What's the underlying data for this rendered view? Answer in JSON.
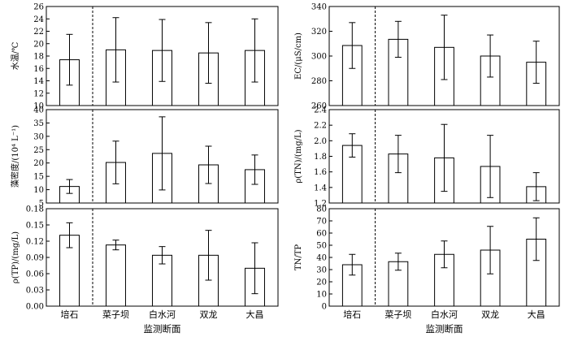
{
  "chart_data": [
    {
      "type": "bar",
      "ylabel": "水温/℃",
      "ylim": [
        10,
        26
      ],
      "ticks": [
        10,
        12,
        14,
        16,
        18,
        20,
        22,
        24,
        26
      ],
      "decimals": 0,
      "categories": [
        "培石",
        "菜子坝",
        "白水河",
        "双龙",
        "大昌"
      ],
      "values": [
        17.4,
        19.0,
        18.9,
        18.5,
        18.9
      ],
      "errors": [
        4.1,
        5.2,
        5.0,
        4.9,
        5.1
      ]
    },
    {
      "type": "bar",
      "ylabel": "藻密度/(10⁴ L⁻¹)",
      "ylim": [
        5,
        40
      ],
      "ticks": [
        5,
        10,
        15,
        20,
        25,
        30,
        35,
        40
      ],
      "decimals": 0,
      "categories": [
        "培石",
        "菜子坝",
        "白水河",
        "双龙",
        "大昌"
      ],
      "values": [
        11.2,
        20.2,
        23.6,
        19.3,
        17.5
      ],
      "errors": [
        2.6,
        8.0,
        13.7,
        7.0,
        5.5
      ]
    },
    {
      "type": "bar",
      "ylabel": "ρ(TP)/(mg/L)",
      "ylim": [
        0,
        0.18
      ],
      "ticks": [
        0,
        0.03,
        0.06,
        0.09,
        0.12,
        0.15,
        0.18
      ],
      "decimals": 2,
      "categories": [
        "培石",
        "菜子坝",
        "白水河",
        "双龙",
        "大昌"
      ],
      "values": [
        0.131,
        0.113,
        0.094,
        0.094,
        0.07
      ],
      "errors": [
        0.023,
        0.009,
        0.016,
        0.046,
        0.047
      ],
      "xlabel": "监测断面"
    },
    {
      "type": "bar",
      "ylabel": "EC/(μS/cm)",
      "ylim": [
        260,
        340
      ],
      "ticks": [
        260,
        280,
        300,
        320,
        340
      ],
      "decimals": 0,
      "categories": [
        "培石",
        "菜子坝",
        "白水河",
        "双龙",
        "大昌"
      ],
      "values": [
        308.5,
        313.5,
        307.0,
        300.0,
        295.0
      ],
      "errors": [
        18.5,
        14.5,
        26.0,
        17.0,
        17.0
      ]
    },
    {
      "type": "bar",
      "ylabel": "ρ(TN)/(mg/L)",
      "ylim": [
        1.2,
        2.4
      ],
      "ticks": [
        1.2,
        1.4,
        1.6,
        1.8,
        2.0,
        2.2,
        2.4
      ],
      "decimals": 1,
      "categories": [
        "培石",
        "菜子坝",
        "白水河",
        "双龙",
        "大昌"
      ],
      "values": [
        1.94,
        1.83,
        1.78,
        1.67,
        1.41
      ],
      "errors": [
        0.15,
        0.24,
        0.43,
        0.4,
        0.18
      ]
    },
    {
      "type": "bar",
      "ylabel": "TN/TP",
      "ylim": [
        0,
        80
      ],
      "ticks": [
        0,
        10,
        20,
        30,
        40,
        50,
        60,
        70,
        80
      ],
      "decimals": 0,
      "categories": [
        "培石",
        "菜子坝",
        "白水河",
        "双龙",
        "大昌"
      ],
      "values": [
        34,
        36.5,
        42.5,
        46,
        55
      ],
      "errors": [
        8.5,
        7,
        11,
        19.5,
        17.5
      ],
      "xlabel": "监测断面"
    }
  ]
}
